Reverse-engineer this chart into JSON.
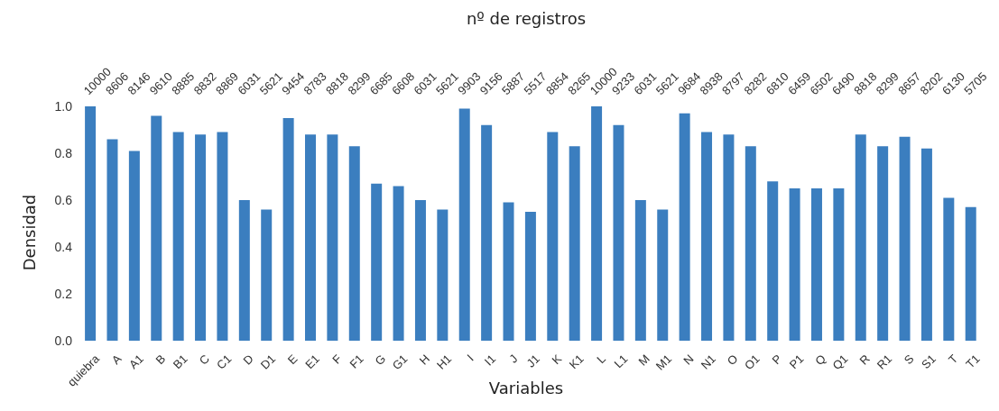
{
  "chart_data": {
    "type": "bar",
    "x2label": "nº de registros",
    "xlabel": "Variables",
    "ylabel": "Densidad",
    "categories": [
      "quiebra",
      "A",
      "A1",
      "B",
      "B1",
      "C",
      "C1",
      "D",
      "D1",
      "E",
      "E1",
      "F",
      "F1",
      "G",
      "G1",
      "H",
      "H1",
      "I",
      "I1",
      "J",
      "J1",
      "K",
      "K1",
      "L",
      "L1",
      "M",
      "M1",
      "N",
      "N1",
      "O",
      "O1",
      "P",
      "P1",
      "Q",
      "Q1",
      "R",
      "R1",
      "S",
      "S1",
      "T",
      "T1"
    ],
    "values": [
      1.0,
      0.86,
      0.81,
      0.96,
      0.89,
      0.88,
      0.89,
      0.6,
      0.56,
      0.95,
      0.88,
      0.88,
      0.83,
      0.67,
      0.66,
      0.6,
      0.56,
      0.99,
      0.92,
      0.59,
      0.55,
      0.89,
      0.83,
      1.0,
      0.92,
      0.6,
      0.56,
      0.97,
      0.89,
      0.88,
      0.83,
      0.68,
      0.65,
      0.65,
      0.65,
      0.88,
      0.83,
      0.87,
      0.82,
      0.61,
      0.57
    ],
    "annotations": [
      "10000",
      "8606",
      "8146",
      "9610",
      "8885",
      "8832",
      "8869",
      "6031",
      "5621",
      "9454",
      "8783",
      "8818",
      "8299",
      "6685",
      "6608",
      "6031",
      "5621",
      "9903",
      "9156",
      "5887",
      "5517",
      "8854",
      "8265",
      "10000",
      "9233",
      "6031",
      "5621",
      "9684",
      "8938",
      "8797",
      "8282",
      "6810",
      "6459",
      "6502",
      "6490",
      "8818",
      "8299",
      "8657",
      "8202",
      "6130",
      "5705"
    ],
    "color": "#3b7ebf",
    "ylim": [
      0,
      1
    ],
    "yticks": [
      {
        "value": 0,
        "label": "0.0"
      },
      {
        "value": 0.2,
        "label": "0.2"
      },
      {
        "value": 0.4,
        "label": "0.4"
      },
      {
        "value": 0.6,
        "label": "0.6"
      },
      {
        "value": 0.8,
        "label": "0.8"
      },
      {
        "value": 1,
        "label": "1.0"
      }
    ],
    "grid": false,
    "legend": false
  }
}
